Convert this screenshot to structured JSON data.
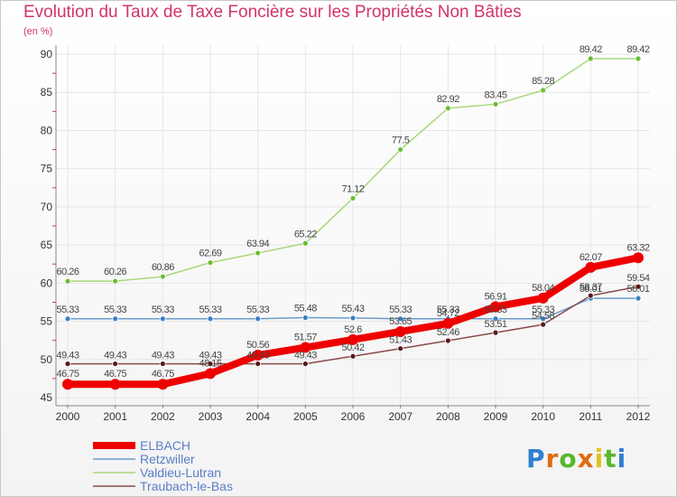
{
  "chart_data": {
    "type": "line",
    "title": "Evolution du Taux de Taxe Foncière sur les Propriétés Non Bâties",
    "ylabel": "(en %)",
    "x": [
      "2000",
      "2001",
      "2002",
      "2003",
      "2004",
      "2005",
      "2006",
      "2007",
      "2008",
      "2009",
      "2010",
      "2011",
      "2012"
    ],
    "ylim": [
      45,
      90
    ],
    "yticks": [
      45,
      50,
      55,
      60,
      65,
      70,
      75,
      80,
      85,
      90
    ],
    "grid": true,
    "legend_position": "bottom-left",
    "series": [
      {
        "name": "Valdieu-Lutran",
        "color": "#a8d878",
        "marker": "#6cbd35",
        "values": [
          60.26,
          60.26,
          60.86,
          62.69,
          63.94,
          65.22,
          71.12,
          77.5,
          82.92,
          83.45,
          85.28,
          89.42,
          89.42
        ],
        "labels": [
          "60.26",
          "60.26",
          "60.86",
          "62.69",
          "63.94",
          "65.22",
          "71.12",
          "77.5",
          "82.92",
          "83.45",
          "85.28",
          "89.42",
          "89.42"
        ]
      },
      {
        "name": "Retzwiller",
        "color": "#6a9ccc",
        "marker": "#3a7fc8",
        "values": [
          55.33,
          55.33,
          55.33,
          55.33,
          55.33,
          55.48,
          55.43,
          55.33,
          55.33,
          55.33,
          55.33,
          58.01,
          58.01
        ],
        "labels": [
          "55.33",
          "55.33",
          "55.33",
          "55.33",
          "55.33",
          "55.48",
          "55.43",
          "55.33",
          "55.33",
          "55.33",
          "55.33",
          "58.01",
          "58.01"
        ]
      },
      {
        "name": "Traubach-le-Bas",
        "color": "#8a4a4a",
        "marker": "#5a1818",
        "values": [
          49.43,
          49.43,
          49.43,
          49.43,
          49.43,
          49.43,
          50.42,
          51.43,
          52.46,
          53.51,
          54.58,
          58.37,
          59.54
        ],
        "labels": [
          "49.43",
          "49.43",
          "49.43",
          "49.43",
          "49.43",
          "49.43",
          "50.42",
          "51.43",
          "52.46",
          "53.51",
          "54.58",
          "58.37",
          "59.54"
        ]
      },
      {
        "name": "ELBACH",
        "color": "#ee0000",
        "marker": "#ee0000",
        "values": [
          46.75,
          46.75,
          46.75,
          48.15,
          50.56,
          51.57,
          52.6,
          53.65,
          54.72,
          56.91,
          58.04,
          62.07,
          63.32
        ],
        "labels": [
          "46.75",
          "46.75",
          "46.75",
          "48.15",
          "50.56",
          "51.57",
          "52.6",
          "53.65",
          "54.72",
          "56.91",
          "58.04",
          "62.07",
          "63.32"
        ]
      }
    ],
    "legend": [
      "ELBACH",
      "Retzwiller",
      "Valdieu-Lutran",
      "Traubach-le-Bas"
    ]
  },
  "logo": {
    "p": "P",
    "r": "r",
    "o": "o",
    "x": "x",
    "i1": "i",
    "t": "t",
    "i2": "i"
  }
}
